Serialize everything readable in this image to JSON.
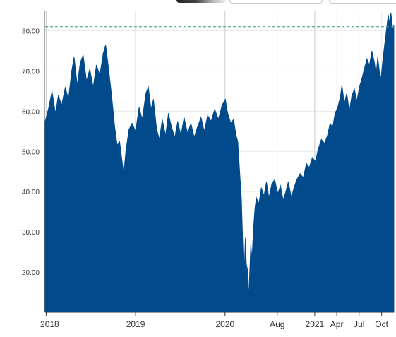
{
  "colors": {
    "area": "#014b8c",
    "reference_line": "#3a9a8a",
    "grid": "#eaeaea",
    "axis": "#333333"
  },
  "chart_data": {
    "type": "area",
    "title": "",
    "xlabel": "",
    "ylabel": "",
    "grid": true,
    "ylim": [
      10,
      85
    ],
    "xlim": [
      "2017-12-28",
      "2021-11-20"
    ],
    "y_ticks": [
      "20.00",
      "30.00",
      "40.00",
      "50.00",
      "60.00",
      "70.00",
      "80.00"
    ],
    "x_ticks": [
      {
        "date": "2018-01-01",
        "label": "2018"
      },
      {
        "date": "2019-01-01",
        "label": "2019"
      },
      {
        "date": "2020-01-01",
        "label": "2020"
      },
      {
        "date": "2020-08-01",
        "label": "Aug"
      },
      {
        "date": "2021-01-01",
        "label": "2021"
      },
      {
        "date": "2021-04-01",
        "label": "Apr"
      },
      {
        "date": "2021-07-01",
        "label": "Jul"
      },
      {
        "date": "2021-10-01",
        "label": "Oct"
      }
    ],
    "reference_line": {
      "value": 81
    },
    "series": [
      {
        "values": [
          [
            "2017-12-28",
            57.5
          ],
          [
            "2018-01-10",
            60.5
          ],
          [
            "2018-01-25",
            65.0
          ],
          [
            "2018-02-08",
            59.5
          ],
          [
            "2018-02-20",
            64.0
          ],
          [
            "2018-03-05",
            61.5
          ],
          [
            "2018-03-20",
            66.0
          ],
          [
            "2018-04-02",
            63.0
          ],
          [
            "2018-04-15",
            70.0
          ],
          [
            "2018-04-25",
            73.5
          ],
          [
            "2018-05-08",
            66.5
          ],
          [
            "2018-05-20",
            72.0
          ],
          [
            "2018-06-01",
            74.0
          ],
          [
            "2018-06-15",
            67.5
          ],
          [
            "2018-06-28",
            70.5
          ],
          [
            "2018-07-12",
            66.0
          ],
          [
            "2018-07-25",
            71.5
          ],
          [
            "2018-08-08",
            69.0
          ],
          [
            "2018-08-22",
            74.5
          ],
          [
            "2018-09-01",
            76.5
          ],
          [
            "2018-09-12",
            71.0
          ],
          [
            "2018-09-25",
            64.0
          ],
          [
            "2018-10-08",
            56.0
          ],
          [
            "2018-10-18",
            51.5
          ],
          [
            "2018-10-28",
            52.5
          ],
          [
            "2018-11-08",
            47.0
          ],
          [
            "2018-11-14",
            44.5
          ],
          [
            "2018-11-22",
            50.0
          ],
          [
            "2018-12-05",
            55.5
          ],
          [
            "2018-12-18",
            57.0
          ],
          [
            "2019-01-01",
            55.0
          ],
          [
            "2019-01-15",
            61.0
          ],
          [
            "2019-01-28",
            58.0
          ],
          [
            "2019-02-12",
            64.5
          ],
          [
            "2019-02-22",
            66.0
          ],
          [
            "2019-03-05",
            60.5
          ],
          [
            "2019-03-15",
            63.0
          ],
          [
            "2019-03-28",
            55.5
          ],
          [
            "2019-04-08",
            53.0
          ],
          [
            "2019-04-20",
            58.0
          ],
          [
            "2019-05-03",
            54.0
          ],
          [
            "2019-05-15",
            59.5
          ],
          [
            "2019-05-28",
            56.0
          ],
          [
            "2019-06-10",
            53.5
          ],
          [
            "2019-06-22",
            57.5
          ],
          [
            "2019-07-05",
            54.0
          ],
          [
            "2019-07-18",
            58.5
          ],
          [
            "2019-08-01",
            54.5
          ],
          [
            "2019-08-15",
            57.0
          ],
          [
            "2019-08-28",
            53.5
          ],
          [
            "2019-09-10",
            56.0
          ],
          [
            "2019-09-25",
            58.5
          ],
          [
            "2019-10-08",
            55.0
          ],
          [
            "2019-10-22",
            59.0
          ],
          [
            "2019-11-05",
            57.5
          ],
          [
            "2019-11-20",
            60.5
          ],
          [
            "2019-12-05",
            58.0
          ],
          [
            "2019-12-20",
            61.5
          ],
          [
            "2020-01-02",
            63.0
          ],
          [
            "2020-01-12",
            59.5
          ],
          [
            "2020-01-25",
            57.0
          ],
          [
            "2020-02-05",
            58.0
          ],
          [
            "2020-02-15",
            54.0
          ],
          [
            "2020-02-22",
            52.5
          ],
          [
            "2020-03-01",
            45.0
          ],
          [
            "2020-03-08",
            38.0
          ],
          [
            "2020-03-12",
            30.0
          ],
          [
            "2020-03-16",
            23.0
          ],
          [
            "2020-03-20",
            21.5
          ],
          [
            "2020-03-24",
            28.5
          ],
          [
            "2020-03-28",
            22.0
          ],
          [
            "2020-04-02",
            20.5
          ],
          [
            "2020-04-06",
            14.0
          ],
          [
            "2020-04-10",
            19.0
          ],
          [
            "2020-04-15",
            27.0
          ],
          [
            "2020-04-20",
            23.5
          ],
          [
            "2020-04-26",
            31.0
          ],
          [
            "2020-05-02",
            36.0
          ],
          [
            "2020-05-08",
            38.5
          ],
          [
            "2020-05-18",
            37.0
          ],
          [
            "2020-05-28",
            41.0
          ],
          [
            "2020-06-08",
            39.0
          ],
          [
            "2020-06-18",
            42.5
          ],
          [
            "2020-06-28",
            38.5
          ],
          [
            "2020-07-10",
            42.0
          ],
          [
            "2020-07-22",
            43.0
          ],
          [
            "2020-08-03",
            39.5
          ],
          [
            "2020-08-14",
            41.5
          ],
          [
            "2020-08-25",
            38.0
          ],
          [
            "2020-09-05",
            40.0
          ],
          [
            "2020-09-15",
            42.5
          ],
          [
            "2020-09-28",
            38.5
          ],
          [
            "2020-10-08",
            41.0
          ],
          [
            "2020-10-20",
            43.0
          ],
          [
            "2020-11-02",
            44.5
          ],
          [
            "2020-11-15",
            43.5
          ],
          [
            "2020-11-28",
            47.0
          ],
          [
            "2020-12-10",
            46.0
          ],
          [
            "2020-12-22",
            48.5
          ],
          [
            "2021-01-04",
            47.5
          ],
          [
            "2021-01-15",
            50.5
          ],
          [
            "2021-01-28",
            53.0
          ],
          [
            "2021-02-10",
            52.0
          ],
          [
            "2021-02-22",
            54.0
          ],
          [
            "2021-03-05",
            57.0
          ],
          [
            "2021-03-15",
            56.0
          ],
          [
            "2021-03-25",
            59.5
          ],
          [
            "2021-04-05",
            61.0
          ],
          [
            "2021-04-15",
            63.5
          ],
          [
            "2021-04-22",
            66.5
          ],
          [
            "2021-05-02",
            62.0
          ],
          [
            "2021-05-12",
            64.5
          ],
          [
            "2021-05-22",
            60.0
          ],
          [
            "2021-06-02",
            64.0
          ],
          [
            "2021-06-12",
            65.5
          ],
          [
            "2021-06-22",
            62.5
          ],
          [
            "2021-07-02",
            66.0
          ],
          [
            "2021-07-12",
            68.0
          ],
          [
            "2021-07-22",
            70.5
          ],
          [
            "2021-08-02",
            73.0
          ],
          [
            "2021-08-12",
            71.5
          ],
          [
            "2021-08-22",
            75.0
          ],
          [
            "2021-09-02",
            72.0
          ],
          [
            "2021-09-08",
            69.0
          ],
          [
            "2021-09-15",
            73.5
          ],
          [
            "2021-09-22",
            70.0
          ],
          [
            "2021-09-28",
            68.0
          ],
          [
            "2021-10-02",
            70.5
          ],
          [
            "2021-10-08",
            74.0
          ],
          [
            "2021-10-15",
            77.5
          ],
          [
            "2021-10-22",
            81.0
          ],
          [
            "2021-10-28",
            84.0
          ],
          [
            "2021-11-02",
            82.0
          ],
          [
            "2021-11-08",
            84.5
          ],
          [
            "2021-11-12",
            82.5
          ],
          [
            "2021-11-16",
            80.0
          ],
          [
            "2021-11-20",
            81.5
          ]
        ]
      }
    ]
  }
}
